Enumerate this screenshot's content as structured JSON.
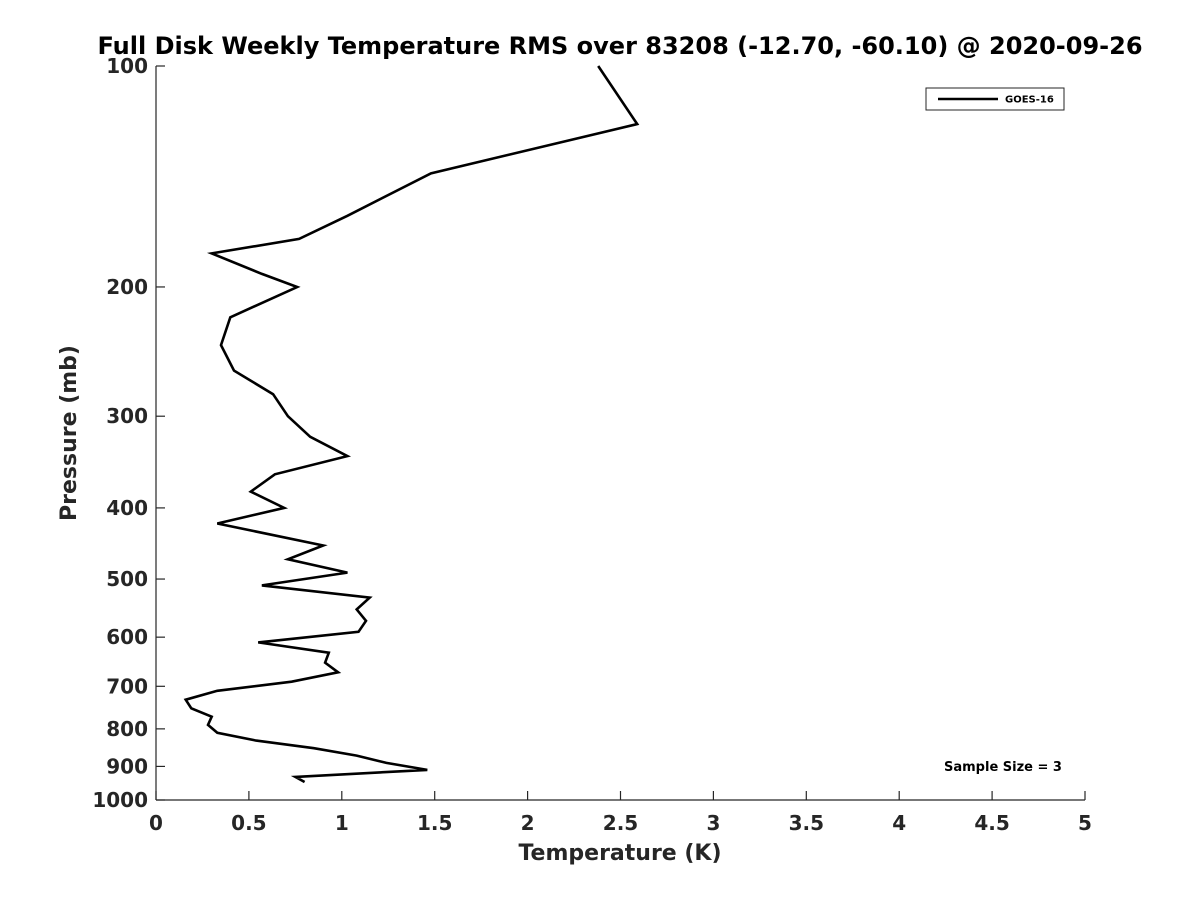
{
  "chart_data": {
    "type": "line",
    "title": "Full Disk Weekly Temperature RMS over 83208 (-12.70, -60.10) @ 2020-09-26",
    "xlabel": "Temperature (K)",
    "ylabel": "Pressure (mb)",
    "xlim": [
      0,
      5
    ],
    "ylim": [
      100,
      1000
    ],
    "yscale": "log",
    "y_reversed": true,
    "grid": false,
    "legend_position": "top-right",
    "x_ticks": [
      "0",
      "0.5",
      "1",
      "1.5",
      "2",
      "2.5",
      "3",
      "3.5",
      "4",
      "4.5",
      "5"
    ],
    "y_ticks": [
      "100",
      "200",
      "300",
      "400",
      "500",
      "600",
      "700",
      "800",
      "900",
      "1000"
    ],
    "series": [
      {
        "name": "GOES-16",
        "color": "#000000",
        "points": [
          [
            2.38,
            100
          ],
          [
            2.59,
            120
          ],
          [
            1.48,
            140
          ],
          [
            1.03,
            160
          ],
          [
            0.77,
            172
          ],
          [
            0.3,
            180
          ],
          [
            0.57,
            192
          ],
          [
            0.76,
            200
          ],
          [
            0.4,
            220
          ],
          [
            0.35,
            240
          ],
          [
            0.42,
            260
          ],
          [
            0.63,
            280
          ],
          [
            0.71,
            300
          ],
          [
            0.83,
            320
          ],
          [
            1.03,
            340
          ],
          [
            0.64,
            360
          ],
          [
            0.51,
            380
          ],
          [
            0.69,
            400
          ],
          [
            0.33,
            420
          ],
          [
            0.9,
            450
          ],
          [
            0.71,
            470
          ],
          [
            1.03,
            490
          ],
          [
            0.57,
            510
          ],
          [
            1.15,
            530
          ],
          [
            1.08,
            550
          ],
          [
            1.13,
            570
          ],
          [
            1.09,
            590
          ],
          [
            0.55,
            610
          ],
          [
            0.93,
            630
          ],
          [
            0.91,
            650
          ],
          [
            0.98,
            670
          ],
          [
            0.73,
            690
          ],
          [
            0.33,
            710
          ],
          [
            0.16,
            730
          ],
          [
            0.19,
            750
          ],
          [
            0.3,
            770
          ],
          [
            0.28,
            790
          ],
          [
            0.33,
            810
          ],
          [
            0.54,
            830
          ],
          [
            0.85,
            850
          ],
          [
            1.08,
            870
          ],
          [
            1.24,
            890
          ],
          [
            1.46,
            910
          ],
          [
            0.75,
            930
          ],
          [
            0.8,
            945
          ]
        ]
      }
    ],
    "legend_entries": [
      "GOES-16"
    ],
    "annotation": "Sample Size = 3"
  }
}
